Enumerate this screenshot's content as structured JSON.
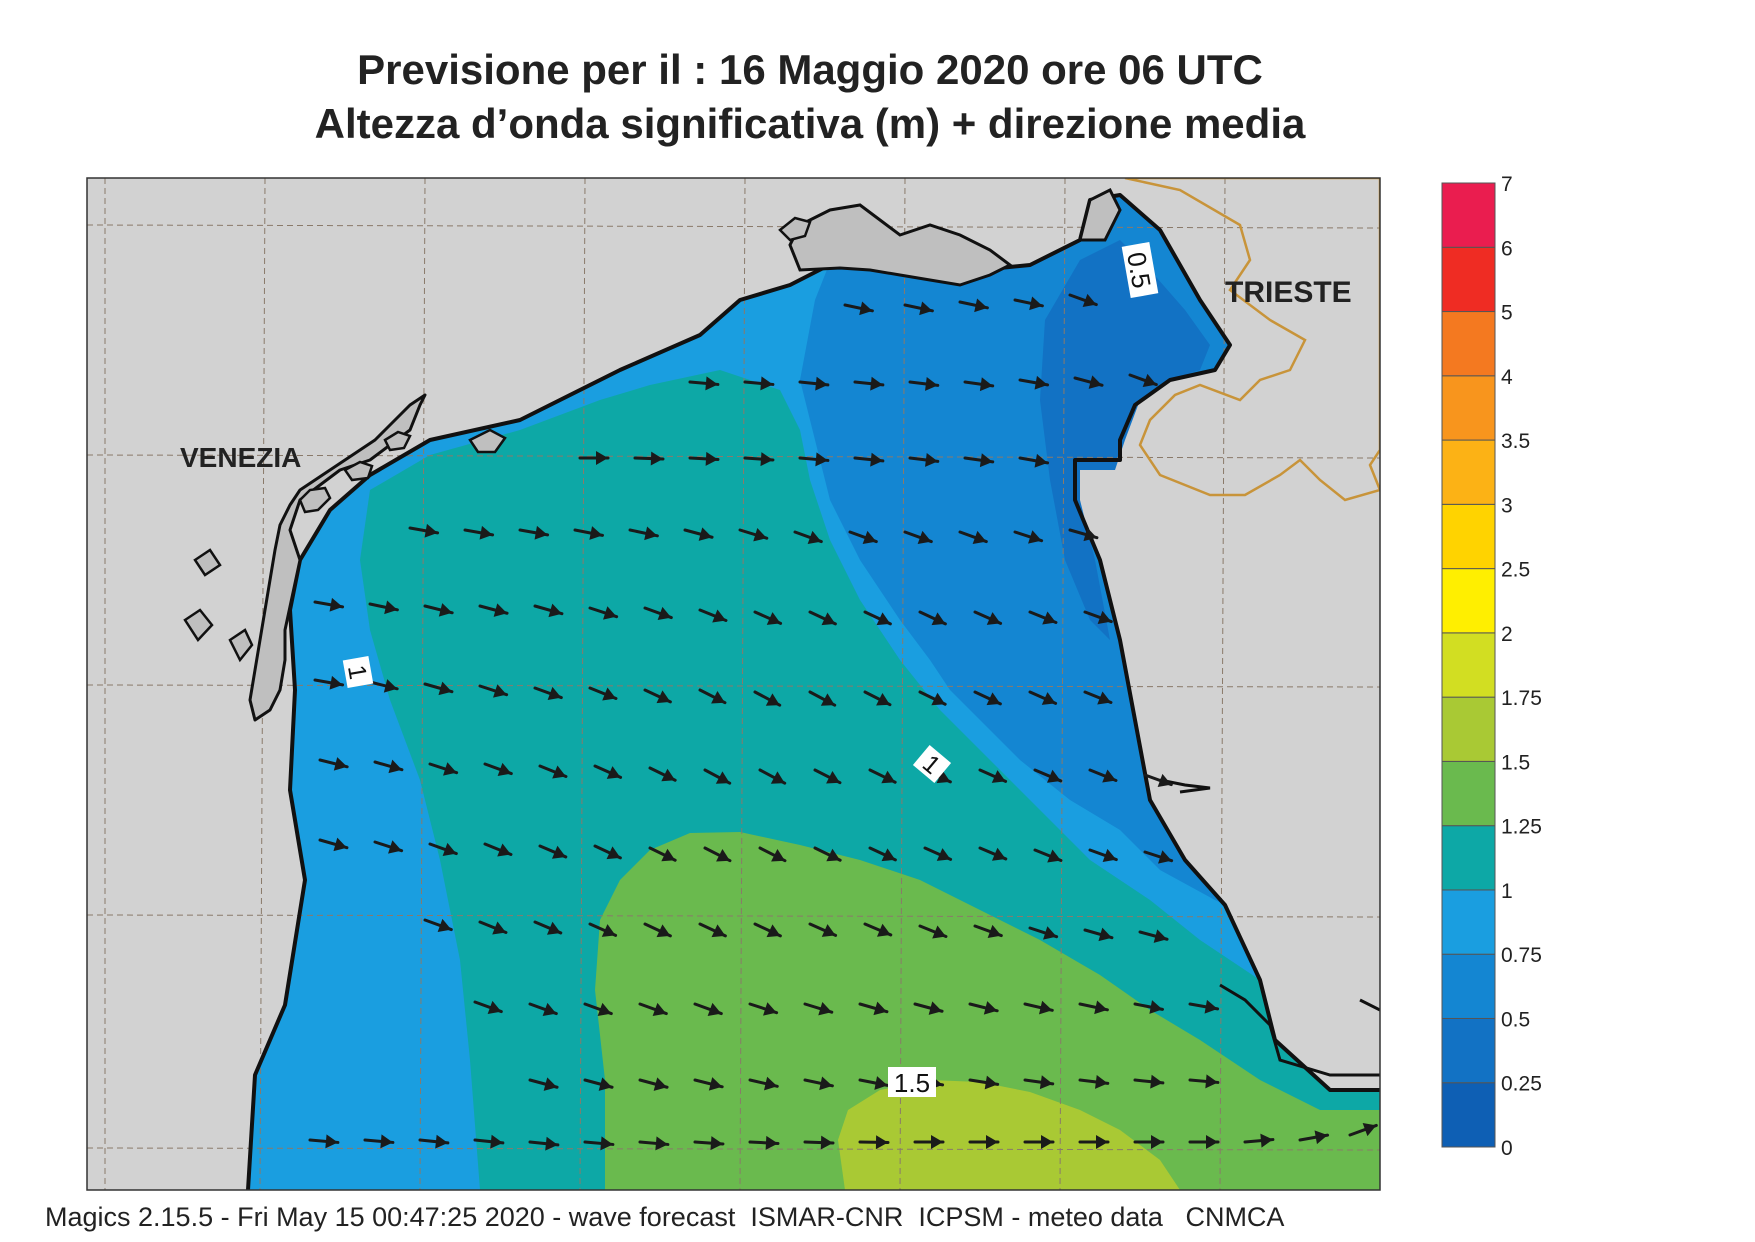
{
  "header": {
    "line1": "Previsione per il  :  16   Maggio  2020   ore 06 UTC",
    "line2": "Altezza d’onda significativa (m) + direzione media"
  },
  "map": {
    "cities": [
      {
        "name": "VENEZIA"
      },
      {
        "name": "TRIESTE"
      }
    ],
    "contour_labels": [
      "0.5",
      "1",
      "1",
      "1.5"
    ],
    "land_color": "#d2d2d2",
    "coast_color": "#111111",
    "border_color": "#c8943a",
    "arrow_color": "#1a1a1a",
    "dominant_wave_direction": "from east-southeast toward west-northwest"
  },
  "legend": {
    "bins": [
      {
        "label": "0",
        "color": "#0e5fb4"
      },
      {
        "label": "0.25",
        "color": "#1272c4"
      },
      {
        "label": "0.5",
        "color": "#1486d2"
      },
      {
        "label": "0.75",
        "color": "#1a9ee0"
      },
      {
        "label": "1",
        "color": "#0da8a6"
      },
      {
        "label": "1.25",
        "color": "#6aba4e"
      },
      {
        "label": "1.5",
        "color": "#a9c934"
      },
      {
        "label": "1.75",
        "color": "#d2de22"
      },
      {
        "label": "2",
        "color": "#ffef00"
      },
      {
        "label": "2.5",
        "color": "#ffd300"
      },
      {
        "label": "3",
        "color": "#fcb215"
      },
      {
        "label": "3.5",
        "color": "#f8951d"
      },
      {
        "label": "4",
        "color": "#f47920"
      },
      {
        "label": "5",
        "color": "#ef2c23"
      },
      {
        "label": "6",
        "color": "#ea1d4f"
      },
      {
        "label": "7",
        "color": ""
      }
    ]
  },
  "footer": {
    "text": "Magics 2.15.5 - Fri May 15 00:47:25 2020 - wave forecast  ISMAR-CNR  ICPSM - meteo data   CNMCA"
  }
}
